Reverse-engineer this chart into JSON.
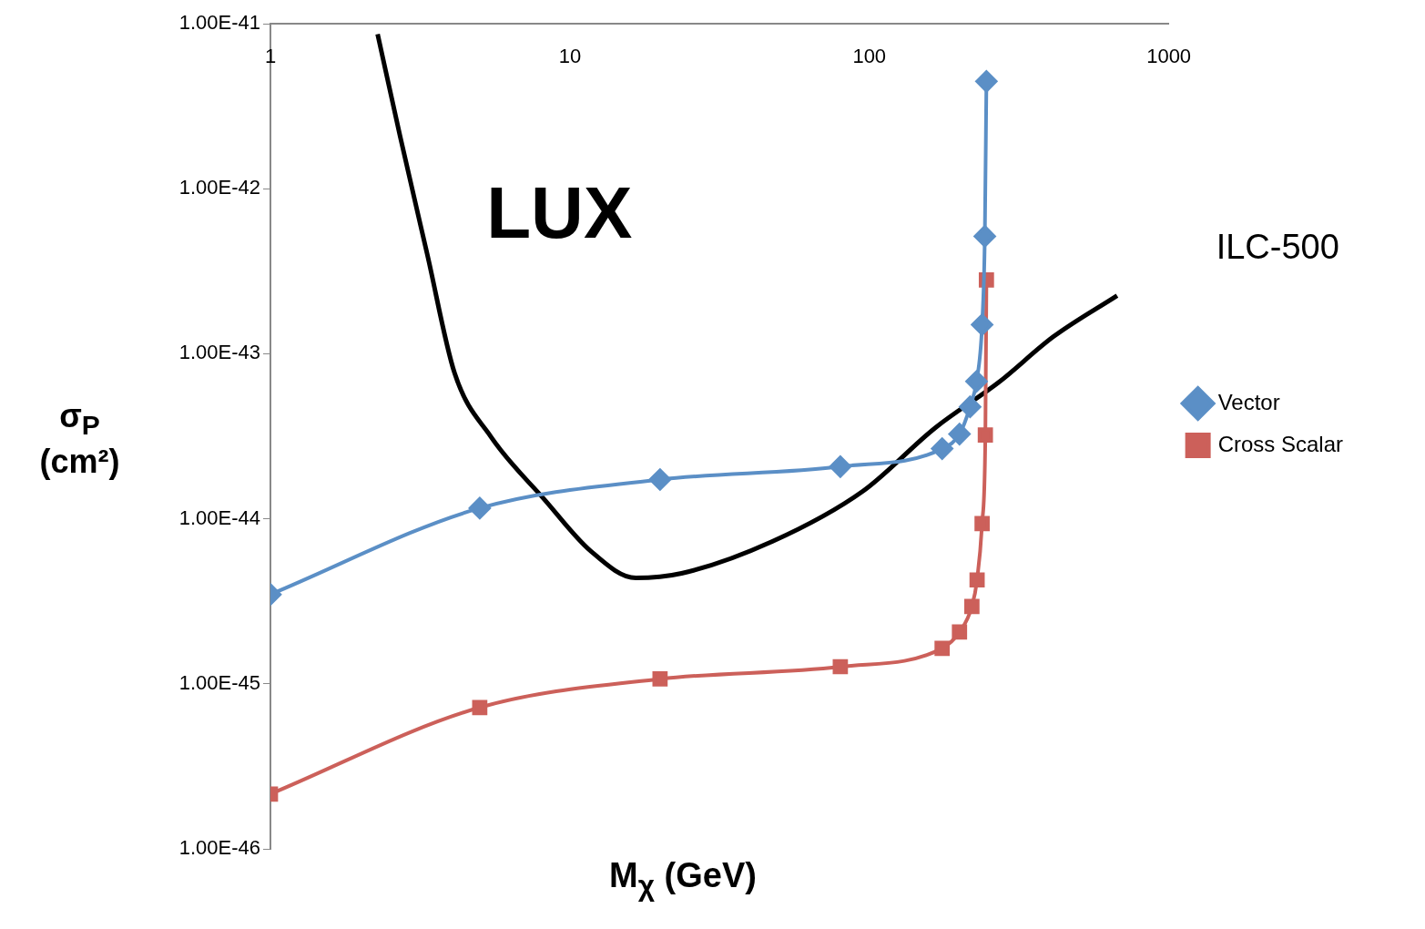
{
  "chart_data": {
    "type": "line",
    "xlabel": "M$_{χ}$ (GeV)",
    "ylabel": "σ$_{P}$ (cm²)",
    "log": "xy",
    "grid": false,
    "legend": "right",
    "xlim": [
      1,
      1000
    ],
    "xticks": [
      1,
      10,
      100,
      1000
    ],
    "ylim": [
      1e-46,
      1e-41
    ],
    "yticks": [
      {
        "value": 1e-46,
        "label": "1.00E-46"
      },
      {
        "value": 1e-45,
        "label": "1.00E-45"
      },
      {
        "value": 1e-44,
        "label": "1.00E-44"
      },
      {
        "value": 1e-43,
        "label": "1.00E-43"
      },
      {
        "value": 1e-42,
        "label": "1.00E-42"
      },
      {
        "value": 1e-41,
        "label": "1.00E-41"
      }
    ],
    "annotations": [
      "ILC-500"
    ],
    "series": [
      {
        "name": "Vector",
        "color": "#5b8fc6",
        "marker": "diamond",
        "x": [
          1,
          5,
          20,
          80,
          175,
          200,
          217,
          228,
          238,
          243,
          246
        ],
        "values": [
          3.48e-45,
          1.16e-44,
          1.73e-44,
          2.07e-44,
          2.66e-44,
          3.26e-44,
          4.77e-44,
          6.8e-44,
          1.5e-43,
          5.15e-43,
          4.47e-42
        ]
      },
      {
        "name": "Cross Scalar",
        "color": "#cc605a",
        "marker": "square",
        "x": [
          1,
          5,
          20,
          80,
          175,
          200,
          220,
          229,
          238,
          244,
          246
        ],
        "values": [
          2.15e-46,
          7.19e-46,
          1.07e-45,
          1.27e-45,
          1.64e-45,
          2.06e-45,
          2.94e-45,
          4.26e-45,
          9.35e-45,
          3.22e-44,
          2.8e-43
        ]
      },
      {
        "name": "LUX",
        "color": "#000000",
        "marker": "none",
        "x": [
          2.28,
          2.71,
          3.34,
          4.12,
          5.45,
          8.28,
          11.7,
          16.6,
          23.6,
          47.4,
          95.2,
          166,
          271,
          412,
          672
        ],
        "values": [
          8.65e-42,
          2.08e-42,
          4e-43,
          7.64e-44,
          3.14e-44,
          1.29e-44,
          6.41e-45,
          4.38e-45,
          4.67e-45,
          7.28e-45,
          1.47e-44,
          3.56e-44,
          6.73e-44,
          1.27e-43,
          2.25e-43
        ]
      }
    ]
  }
}
